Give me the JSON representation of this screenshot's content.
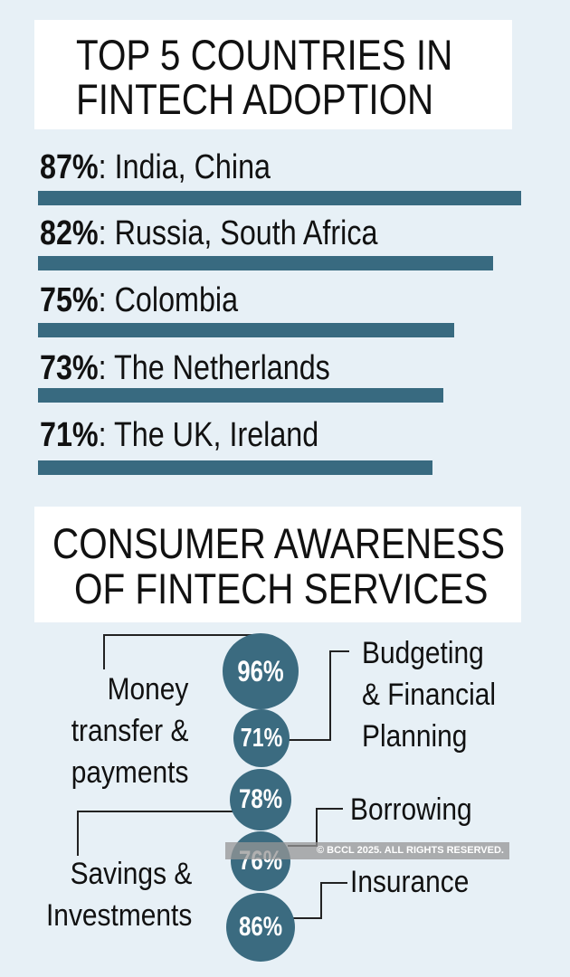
{
  "chart_data": [
    {
      "type": "bar",
      "title": "TOP 5 COUNTRIES IN FINTECH ADOPTION",
      "title_lines": [
        "TOP 5 COUNTRIES IN",
        "FINTECH ADOPTION"
      ],
      "categories": [
        "India, China",
        "Russia, South Africa",
        "Colombia",
        "The Netherlands",
        "The UK, Ireland"
      ],
      "values": [
        87,
        82,
        75,
        73,
        71
      ],
      "value_labels": [
        "87%",
        "82%",
        "75%",
        "73%",
        "71%"
      ],
      "orientation": "horizontal",
      "xlim": [
        0,
        100
      ]
    },
    {
      "type": "bubble",
      "title": "CONSUMER AWARENESS OF FINTECH SERVICES",
      "title_lines": [
        "CONSUMER AWARENESS",
        "OF FINTECH SERVICES"
      ],
      "categories": [
        "Money transfer & payments",
        "Budgeting & Financial Planning",
        "Savings & Investments",
        "Borrowing",
        "Insurance"
      ],
      "label_lines": [
        [
          "Money",
          "transfer &",
          "payments"
        ],
        [
          "Budgeting",
          "& Financial",
          "Planning"
        ],
        [
          "Savings &",
          "Investments"
        ],
        [
          "Borrowing"
        ],
        [
          "Insurance"
        ]
      ],
      "values": [
        96,
        71,
        78,
        76,
        86
      ],
      "value_labels": [
        "96%",
        "71%",
        "78%",
        "76%",
        "86%"
      ]
    }
  ],
  "colors": {
    "background": "#e7f0f6",
    "bar": "#386a80",
    "circle": "#3b6b80"
  },
  "watermark": "© BCCL 2025. ALL RIGHTS RESERVED."
}
